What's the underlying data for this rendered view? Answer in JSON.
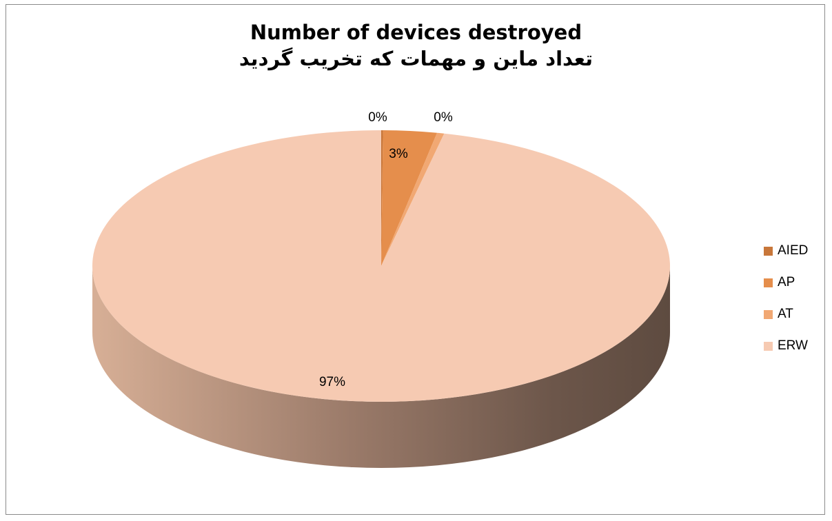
{
  "chart_data": {
    "type": "pie",
    "title": "Number of devices destroyed",
    "subtitle": "تعداد ماین و مهمات که تخریب گردید",
    "categories": [
      "AIED",
      "AP",
      "AT",
      "ERW"
    ],
    "values": [
      0.1,
      3,
      0.4,
      96.5
    ],
    "data_labels": [
      "0%",
      "3%",
      "0%",
      "97%"
    ],
    "colors": [
      "#C8773A",
      "#E58E4C",
      "#F1A873",
      "#F6CAB2"
    ],
    "legend_position": "right",
    "style": "3d"
  }
}
